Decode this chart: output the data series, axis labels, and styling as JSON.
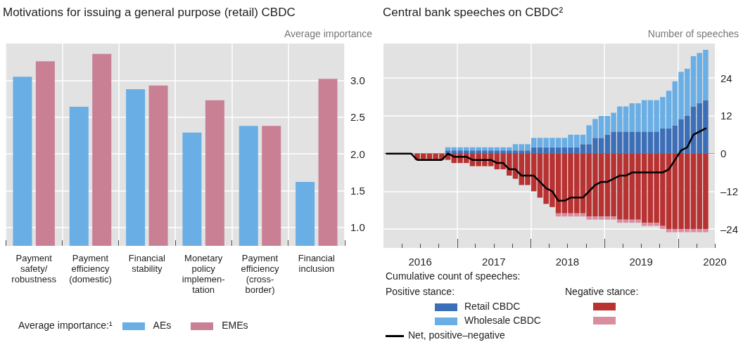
{
  "chart_data": [
    {
      "type": "bar",
      "title": "Motivations for issuing a general purpose (retail) CBDC",
      "ylabel": "Average importance",
      "legend_title": "Average importance:¹",
      "categories": [
        "Payment\nsafety/\nrobustness",
        "Payment\nefficiency\n(domestic)",
        "Financial\nstability",
        "Monetary\npolicy\nimplemen-\ntation",
        "Payment\nefficiency\n(cross-\nborder)",
        "Financial\ninclusion"
      ],
      "series": [
        {
          "name": "AEs",
          "color": "#6aaee6",
          "values": [
            3.05,
            2.64,
            2.88,
            2.29,
            2.38,
            1.62
          ]
        },
        {
          "name": "EMEs",
          "color": "#c98095",
          "values": [
            3.26,
            3.36,
            2.93,
            2.73,
            2.38,
            3.02
          ]
        }
      ],
      "ylim": [
        0.75,
        3.5
      ],
      "yticks": [
        {
          "value": 1,
          "label": "1.0"
        },
        {
          "value": 1.5,
          "label": "1.5"
        },
        {
          "value": 2,
          "label": "2.0"
        },
        {
          "value": 2.5,
          "label": "2.5"
        },
        {
          "value": 3,
          "label": "3.0"
        }
      ],
      "grid": true,
      "legend": "bottom"
    },
    {
      "type": "bar",
      "title": "Central bank speeches on CBDC²",
      "ylabel": "Number of speeches",
      "legend_title": "Cumulative count of speeches:",
      "annotations": [
        "Positive stance:",
        "Negative stance:"
      ],
      "stacked": true,
      "x": [
        "2016-01-15",
        "2016-02-15",
        "2016-03-15",
        "2016-04-15",
        "2016-05-15",
        "2016-06-15",
        "2016-07-15",
        "2016-08-15",
        "2016-09-15",
        "2016-10-15",
        "2016-11-15",
        "2016-12-15",
        "2017-01-15",
        "2017-02-15",
        "2017-03-15",
        "2017-04-15",
        "2017-05-15",
        "2017-06-15",
        "2017-07-15",
        "2017-08-15",
        "2017-09-15",
        "2017-10-15",
        "2017-11-15",
        "2017-12-15",
        "2018-01-15",
        "2018-02-15",
        "2018-03-15",
        "2018-04-15",
        "2018-05-15",
        "2018-06-15",
        "2018-07-15",
        "2018-08-15",
        "2018-09-15",
        "2018-10-15",
        "2018-11-15",
        "2018-12-15",
        "2019-01-15",
        "2019-02-15",
        "2019-03-15",
        "2019-04-15",
        "2019-05-15",
        "2019-06-15",
        "2019-07-15",
        "2019-08-15",
        "2019-09-15",
        "2019-10-15",
        "2019-11-15",
        "2019-12-15",
        "2020-01-15",
        "2020-02-15",
        "2020-03-15",
        "2020-04-15",
        "2020-05-15"
      ],
      "series": [
        {
          "name": "Retail CBDC",
          "color": "#3d6fb8",
          "values": [
            0,
            0,
            0,
            0,
            0,
            0,
            0,
            0,
            0,
            0,
            1,
            1,
            1,
            1,
            1,
            1,
            1,
            1,
            1,
            1,
            1,
            1,
            1,
            1,
            2,
            2,
            2,
            2,
            2,
            2,
            2,
            2,
            3,
            3,
            5,
            5,
            6,
            7,
            7,
            7,
            7,
            7,
            7,
            7,
            7,
            8,
            8,
            9,
            11,
            12,
            15,
            16,
            17
          ]
        },
        {
          "name": "Wholesale CBDC",
          "color": "#6aaee6",
          "values": [
            0,
            0,
            0,
            0,
            0,
            0,
            0,
            0,
            0,
            0,
            1,
            1,
            1,
            1,
            1,
            1,
            1,
            1,
            1,
            1,
            1,
            2,
            2,
            2,
            3,
            3,
            3,
            3,
            3,
            3,
            4,
            4,
            3,
            6,
            6,
            7,
            6,
            6,
            8,
            8,
            9,
            9,
            10,
            10,
            10,
            10,
            12,
            14,
            15,
            15,
            16,
            16,
            16
          ]
        },
        {
          "color": "#b83232",
          "values": [
            0,
            0,
            0,
            0,
            0,
            -2,
            -2,
            -2,
            -2,
            -2,
            -2,
            -3,
            -3,
            -3,
            -4,
            -4,
            -4,
            -4,
            -5,
            -5,
            -7,
            -8,
            -10,
            -10,
            -12,
            -14,
            -16,
            -17,
            -19,
            -19,
            -19,
            -19,
            -19,
            -20,
            -20,
            -20,
            -20,
            -20,
            -21,
            -21,
            -21,
            -21,
            -22,
            -22,
            -22,
            -23,
            -24,
            -24,
            -24,
            -24,
            -24,
            -24,
            -24
          ]
        },
        {
          "color": "#d98ea0",
          "values": [
            0,
            0,
            0,
            0,
            0,
            0,
            0,
            0,
            0,
            0,
            0,
            0,
            0,
            0,
            0,
            0,
            0,
            0,
            0,
            0,
            0,
            0,
            0,
            0,
            0,
            0,
            0,
            0,
            -1,
            -1,
            -1,
            -1,
            -1,
            -1,
            -1,
            -1,
            -1,
            -1,
            -1,
            -1,
            -1,
            -1,
            -1,
            -1,
            -1,
            -1,
            -1,
            -1,
            -1,
            -1,
            -1,
            -1,
            -1
          ]
        },
        {
          "name": "Net, positive–negative",
          "type": "line",
          "color": "#000000",
          "values": [
            0,
            0,
            0,
            0,
            0,
            -2,
            -2,
            -2,
            -2,
            -2,
            0,
            -1,
            -1,
            -1,
            -2,
            -2,
            -2,
            -2,
            -3,
            -3,
            -5,
            -5,
            -7,
            -7,
            -7,
            -9,
            -11,
            -12,
            -15,
            -15,
            -14,
            -14,
            -14,
            -12,
            -10,
            -9,
            -9,
            -8,
            -7,
            -7,
            -6,
            -6,
            -6,
            -6,
            -6,
            -6,
            -5,
            -2,
            1,
            2,
            6,
            7,
            8
          ]
        }
      ],
      "xlim": [
        "2016-01-01",
        "2020-07-01"
      ],
      "xticks": [
        {
          "value": "2016-04-01",
          "label": null
        },
        {
          "value": "2016-07-01",
          "label": "2016"
        },
        {
          "value": "2016-10-01",
          "label": null
        },
        {
          "value": "2017-01-01",
          "label": null
        },
        {
          "value": "2017-04-01",
          "label": null
        },
        {
          "value": "2017-07-01",
          "label": "2017"
        },
        {
          "value": "2017-10-01",
          "label": null
        },
        {
          "value": "2018-01-01",
          "label": null
        },
        {
          "value": "2018-04-01",
          "label": null
        },
        {
          "value": "2018-07-01",
          "label": "2018"
        },
        {
          "value": "2018-10-01",
          "label": null
        },
        {
          "value": "2019-01-01",
          "label": null
        },
        {
          "value": "2019-04-01",
          "label": null
        },
        {
          "value": "2019-07-01",
          "label": "2019"
        },
        {
          "value": "2019-10-01",
          "label": null
        },
        {
          "value": "2020-01-01",
          "label": null
        },
        {
          "value": "2020-04-01",
          "label": null
        },
        {
          "value": "2020-07-01",
          "label": "2020"
        }
      ],
      "ylim": [
        -30,
        35
      ],
      "yticks": [
        {
          "value": -24,
          "label": "–24"
        },
        {
          "value": -12,
          "label": "–12"
        },
        0,
        12,
        24
      ],
      "ref_lines": [
        {
          "axis": "y",
          "value": 0,
          "color": "#999999"
        }
      ],
      "grid": true,
      "legend": "bottom",
      "marker": "none",
      "line_style": "solid"
    }
  ]
}
